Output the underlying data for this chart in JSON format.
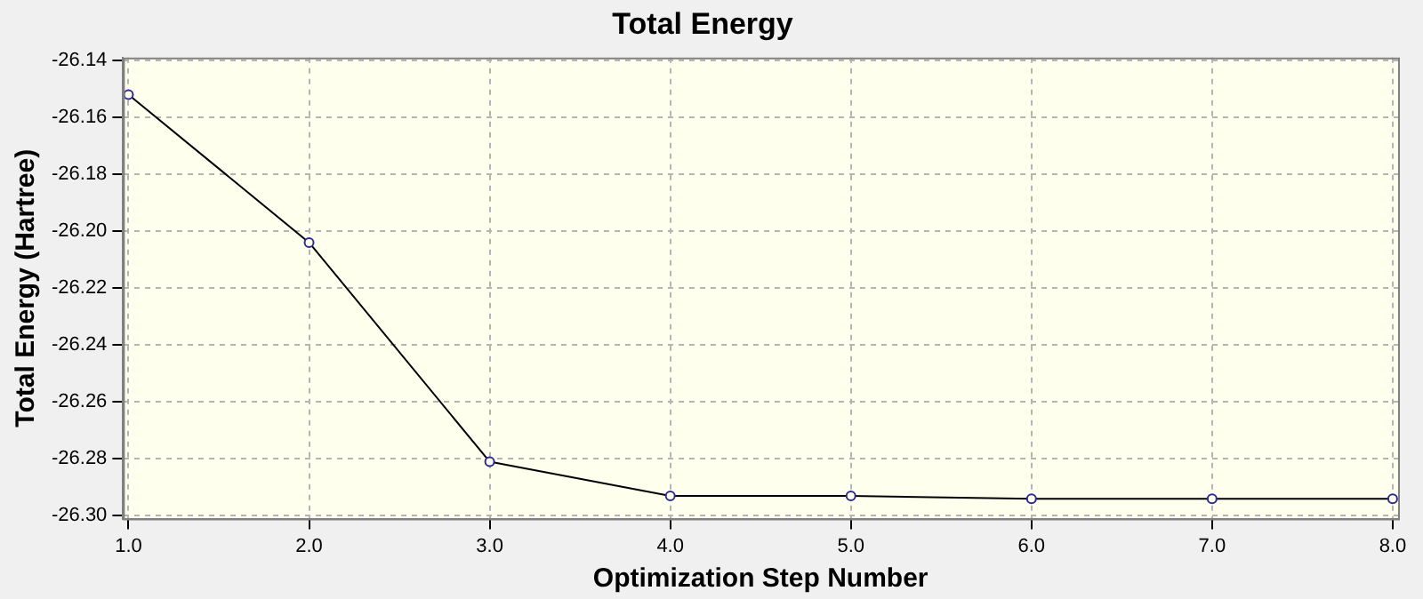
{
  "chart_data": {
    "type": "line",
    "title": "Total Energy",
    "xlabel": "Optimization Step Number",
    "ylabel": "Total Energy (Hartree)",
    "x": [
      1,
      2,
      3,
      4,
      5,
      6,
      7,
      8
    ],
    "series": [
      {
        "color": "#000000",
        "values": [
          -26.152,
          -26.204,
          -26.281,
          -26.293,
          -26.293,
          -26.294,
          -26.294,
          -26.294
        ]
      }
    ],
    "xlim": [
      0.97,
      8.03
    ],
    "xticks": [
      {
        "value": 1,
        "label": "1.0"
      },
      {
        "value": 2,
        "label": "2.0"
      },
      {
        "value": 3,
        "label": "3.0"
      },
      {
        "value": 4,
        "label": "4.0"
      },
      {
        "value": 5,
        "label": "5.0"
      },
      {
        "value": 6,
        "label": "6.0"
      },
      {
        "value": 7,
        "label": "7.0"
      },
      {
        "value": 8,
        "label": "8.0"
      }
    ],
    "ylim": [
      -26.301,
      -26.139
    ],
    "yticks": [
      {
        "value": -26.3,
        "label": "-26.30"
      },
      {
        "value": -26.28,
        "label": "-26.28"
      },
      {
        "value": -26.26,
        "label": "-26.26"
      },
      {
        "value": -26.24,
        "label": "-26.24"
      },
      {
        "value": -26.22,
        "label": "-26.22"
      },
      {
        "value": -26.2,
        "label": "-26.20"
      },
      {
        "value": -26.18,
        "label": "-26.18"
      },
      {
        "value": -26.16,
        "label": "-26.16"
      },
      {
        "value": -26.14,
        "label": "-26.14"
      }
    ],
    "grid": true,
    "legend": false,
    "marker": "circle",
    "line_style": "solid"
  }
}
